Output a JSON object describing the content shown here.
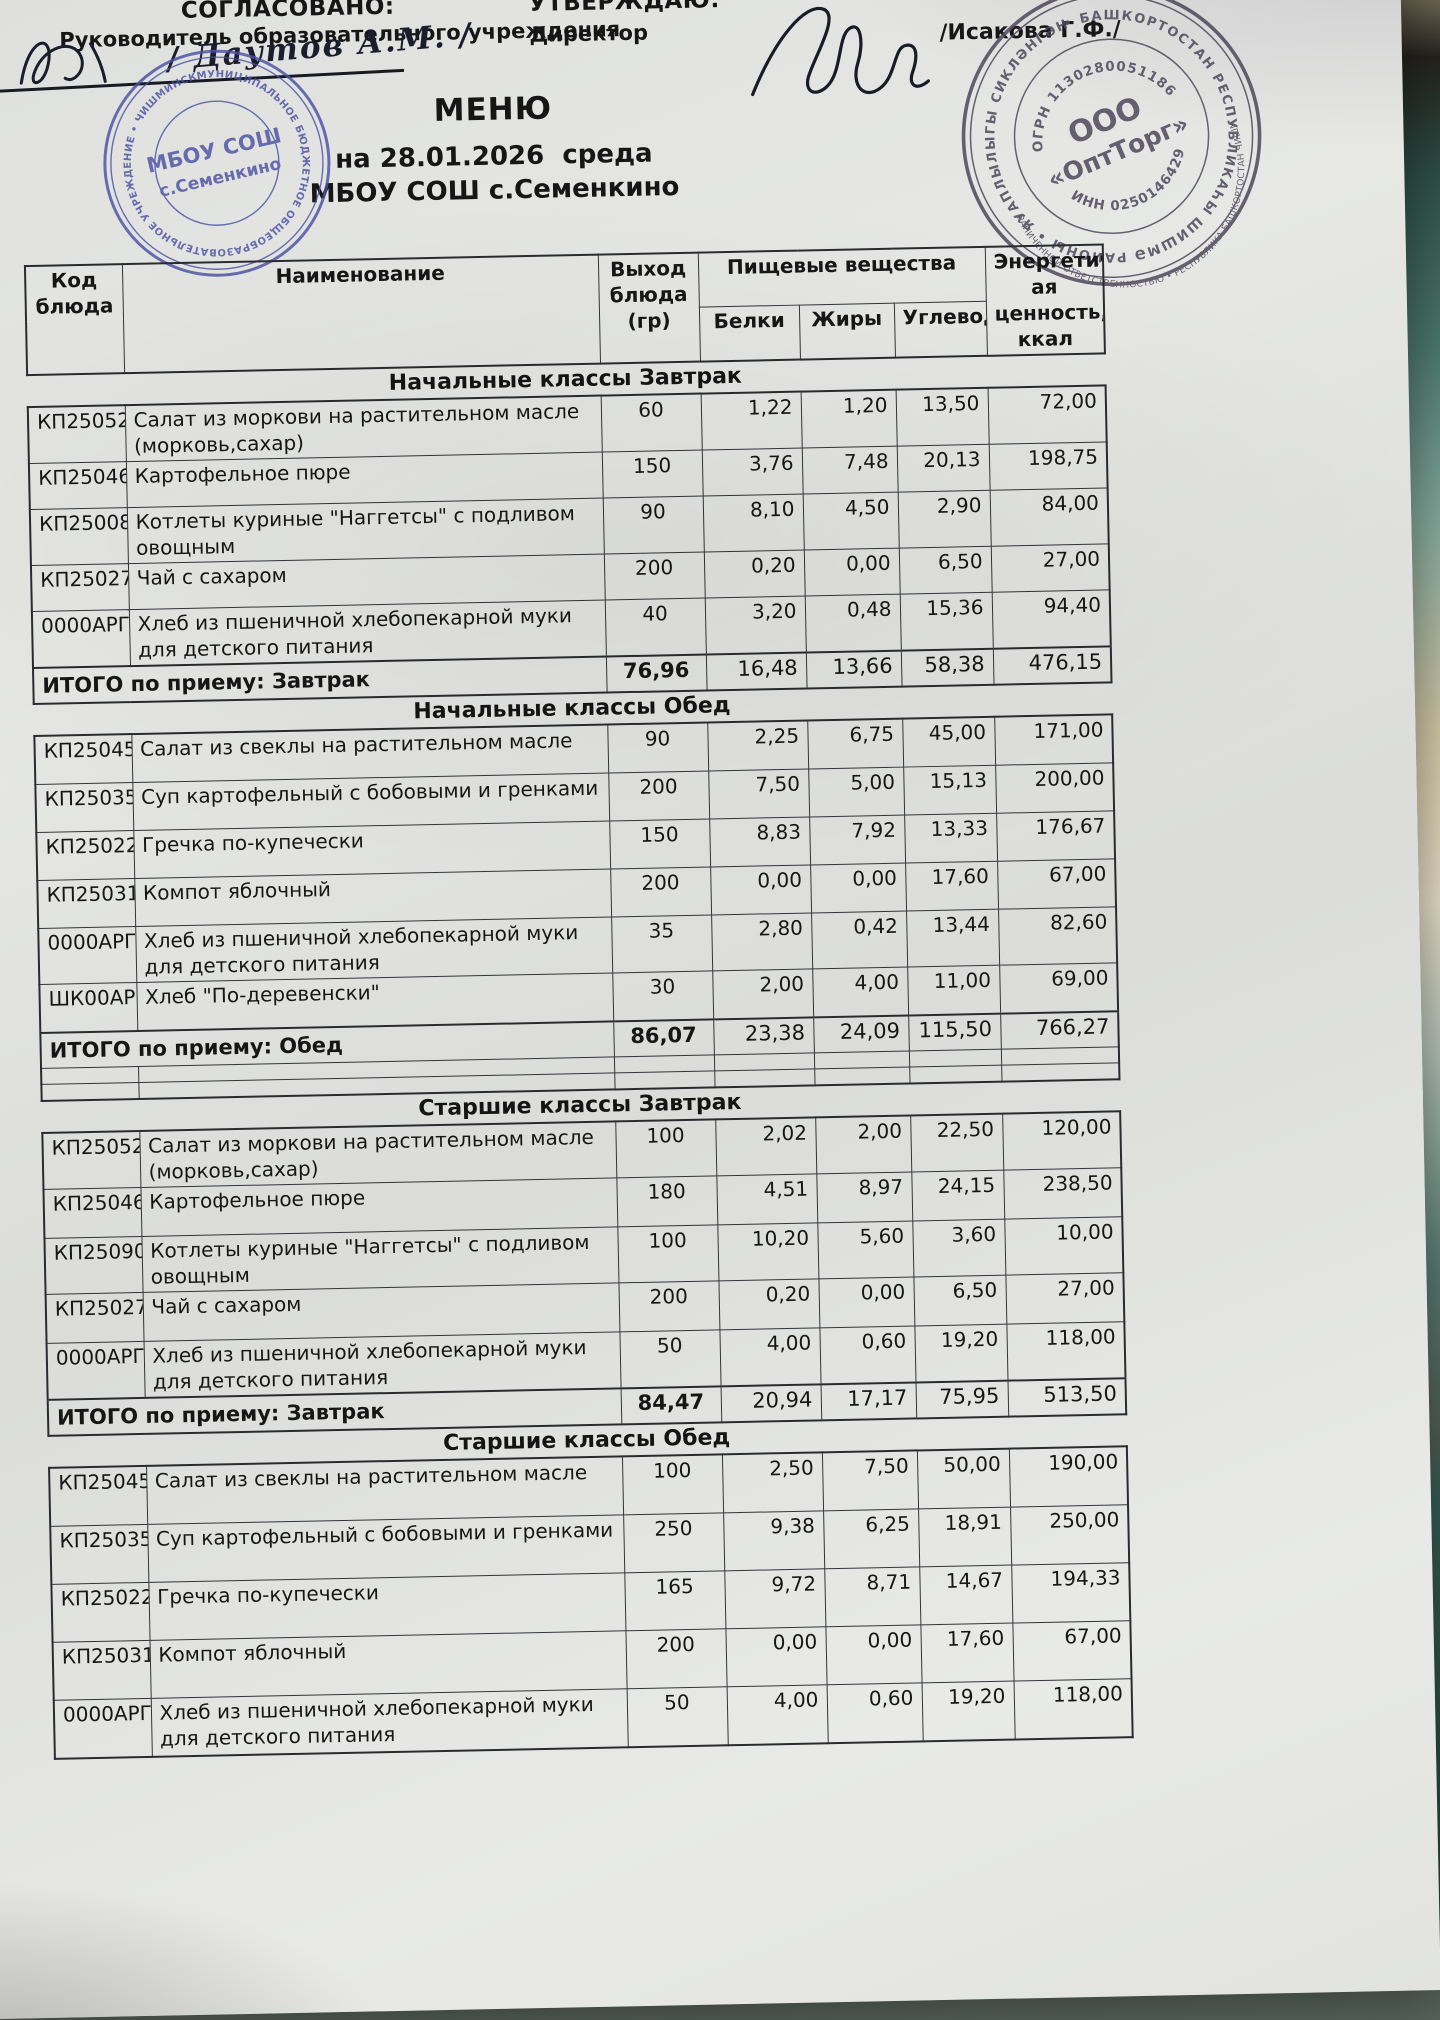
{
  "approval": {
    "left": {
      "title": "СОГЛАСОВАНО:",
      "subtitle": "Руководитель образовательного учреждения",
      "signature": "Даутов А.М.",
      "signature_display": "/ Даутов А.М. /"
    },
    "right": {
      "title": "УТВЕРЖДАЮ:",
      "subtitle": "Директор",
      "signature_display": "/Исакова Г.Ф./"
    }
  },
  "title": {
    "line1": "МЕНЮ",
    "line2": "на 28.01.2026  среда",
    "line3": "МБОУ СОШ с.Семенкино"
  },
  "stamps": {
    "school": {
      "color": "#4b51a3",
      "center_line1": "МБОУ СОШ",
      "center_line2": "с.Семенкино",
      "ring_text": "МУНИЦИПАЛЬНОЕ БЮДЖЕТНОЕ ОБЩЕОБРАЗОВАТЕЛЬНОЕ УЧРЕЖДЕНИЕ • ЧИШМИНСКИЙ РАЙОН РЕСПУБЛИКИ БАШКОРТОСТАН • ОГРН 1020201255953"
    },
    "supplier": {
      "color": "#534d5f",
      "center_line1": "ООО",
      "center_line2": "«ОптТорг»",
      "ogrn": "ОГРН 1130280051186",
      "inn": "ИНН 0250146429",
      "ring_outer": "• БАШКОРТОСТАН РЕСПУБЛИКАҺЫ ШИШМӘ РАЙОНЫ • ЯУАПЛЫЛЫГЫ СИКЛӘНГӘН ЙӘМГИӘТ",
      "ring_inner": "ОБЩЕСТВО С ОГРАНИЧЕННОЙ ОТВЕТСТВЕННОСТЬЮ • РЕСПУБЛИКА БАШКОРТОСТАН ЧИШМИНСКИЙ РАЙОН"
    }
  },
  "table": {
    "headers": {
      "code": "Код\nблюда",
      "name": "Наименование",
      "yield": "Выход\nблюда\n(гр)",
      "nutrients_group": "Пищевые вещества",
      "protein": "Белки",
      "fat": "Жиры",
      "carbs": "Углеводы",
      "energy": "Энергетическ\nая ценность,\nккал"
    },
    "sections": [
      {
        "title": "Начальные классы Завтрак",
        "rows": [
          {
            "code": "КП25052",
            "name": "Салат из моркови на растительном масле (морковь,сахар)",
            "yield": "60",
            "protein": "1,22",
            "fat": "1,20",
            "carbs": "13,50",
            "energy": "72,00"
          },
          {
            "code": "КП25046",
            "name": "Картофельное пюре",
            "yield": "150",
            "protein": "3,76",
            "fat": "7,48",
            "carbs": "20,13",
            "energy": "198,75"
          },
          {
            "code": "КП25008",
            "name": "Котлеты куриные \"Наггетсы\" с подливом овощным",
            "yield": "90",
            "protein": "8,10",
            "fat": "4,50",
            "carbs": "2,90",
            "energy": "84,00"
          },
          {
            "code": "КП25027",
            "name": "Чай с сахаром",
            "yield": "200",
            "protein": "0,20",
            "fat": "0,00",
            "carbs": "6,50",
            "energy": "27,00"
          },
          {
            "code": "0000АРГ",
            "name": "Хлеб из пшеничной хлебопекарной муки для детского питания",
            "yield": "40",
            "protein": "3,20",
            "fat": "0,48",
            "carbs": "15,36",
            "energy": "94,40"
          }
        ],
        "total": {
          "label": "ИТОГО по приему: Завтрак",
          "yield": "76,96",
          "protein": "16,48",
          "fat": "13,66",
          "carbs": "58,38",
          "energy": "476,15"
        }
      },
      {
        "title": "Начальные классы Обед",
        "rows": [
          {
            "code": "КП25045",
            "name": "Салат из свеклы на растительном масле",
            "yield": "90",
            "protein": "2,25",
            "fat": "6,75",
            "carbs": "45,00",
            "energy": "171,00"
          },
          {
            "code": "КП25035",
            "name": "Суп картофельный с бобовыми и гренками",
            "yield": "200",
            "protein": "7,50",
            "fat": "5,00",
            "carbs": "15,13",
            "energy": "200,00"
          },
          {
            "code": "КП25022",
            "name": "Гречка по-купечески",
            "yield": "150",
            "protein": "8,83",
            "fat": "7,92",
            "carbs": "13,33",
            "energy": "176,67"
          },
          {
            "code": "КП25031",
            "name": "Компот яблочный",
            "yield": "200",
            "protein": "0,00",
            "fat": "0,00",
            "carbs": "17,60",
            "energy": "67,00"
          },
          {
            "code": "0000АРГ",
            "name": "Хлеб из пшеничной хлебопекарной муки для детского питания",
            "yield": "35",
            "protein": "2,80",
            "fat": "0,42",
            "carbs": "13,44",
            "energy": "82,60"
          },
          {
            "code": "ШК00АРГ",
            "name": "Хлеб \"По-деревенски\"",
            "yield": "30",
            "protein": "2,00",
            "fat": "4,00",
            "carbs": "11,00",
            "energy": "69,00"
          }
        ],
        "total": {
          "label": "ИТОГО по приему: Обед",
          "yield": "86,07",
          "protein": "23,38",
          "fat": "24,09",
          "carbs": "115,50",
          "energy": "766,27"
        },
        "spacer_rows": 2
      },
      {
        "title": "Старшие классы Завтрак",
        "rows": [
          {
            "code": "КП25052",
            "name": "Салат из моркови на растительном масле (морковь,сахар)",
            "yield": "100",
            "protein": "2,02",
            "fat": "2,00",
            "carbs": "22,50",
            "energy": "120,00"
          },
          {
            "code": "КП25046",
            "name": "Картофельное пюре",
            "yield": "180",
            "protein": "4,51",
            "fat": "8,97",
            "carbs": "24,15",
            "energy": "238,50"
          },
          {
            "code": "КП25090",
            "name": "Котлеты куриные \"Наггетсы\" с подливом овощным",
            "yield": "100",
            "protein": "10,20",
            "fat": "5,60",
            "carbs": "3,60",
            "energy": "10,00"
          },
          {
            "code": "КП25027",
            "name": "Чай с сахаром",
            "yield": "200",
            "protein": "0,20",
            "fat": "0,00",
            "carbs": "6,50",
            "energy": "27,00"
          },
          {
            "code": "0000АРГ",
            "name": "Хлеб из пшеничной хлебопекарной муки для детского питания",
            "yield": "50",
            "protein": "4,00",
            "fat": "0,60",
            "carbs": "19,20",
            "energy": "118,00"
          }
        ],
        "total": {
          "label": "ИТОГО по приему: Завтрак",
          "yield": "84,47",
          "protein": "20,94",
          "fat": "17,17",
          "carbs": "75,95",
          "energy": "513,50"
        }
      },
      {
        "title": "Старшие классы Обед",
        "rows": [
          {
            "code": "КП25045",
            "name": "Салат из свеклы на растительном масле",
            "yield": "100",
            "protein": "2,50",
            "fat": "7,50",
            "carbs": "50,00",
            "energy": "190,00"
          },
          {
            "code": "КП25035",
            "name": "Суп картофельный с бобовыми и гренками",
            "yield": "250",
            "protein": "9,38",
            "fat": "6,25",
            "carbs": "18,91",
            "energy": "250,00"
          },
          {
            "code": "КП25022",
            "name": "Гречка по-купечески",
            "yield": "165",
            "protein": "9,72",
            "fat": "8,71",
            "carbs": "14,67",
            "energy": "194,33"
          },
          {
            "code": "КП25031",
            "name": "Компот яблочный",
            "yield": "200",
            "protein": "0,00",
            "fat": "0,00",
            "carbs": "17,60",
            "energy": "67,00"
          },
          {
            "code": "0000АРГ",
            "name": "Хлеб из пшеничной хлебопекарной муки для детского питания",
            "yield": "50",
            "protein": "4,00",
            "fat": "0,60",
            "carbs": "19,20",
            "energy": "118,00"
          }
        ],
        "total": null
      }
    ]
  }
}
